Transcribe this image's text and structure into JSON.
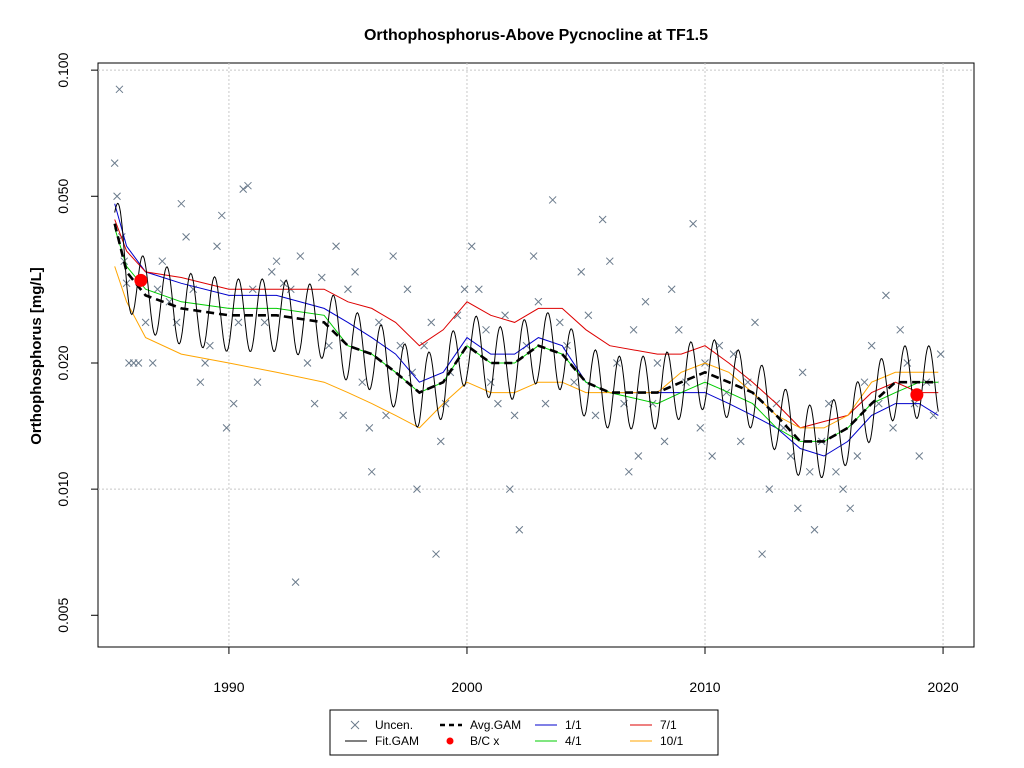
{
  "chart_data": {
    "type": "scatter",
    "title": "Orthophosphorus-Above Pycnocline at TF1.5",
    "xlabel": "",
    "ylabel": "Orthophosphorus [mg/L]",
    "y_scale": "log",
    "xlim": [
      1984.5,
      2021.3
    ],
    "ylim": [
      0.0042,
      0.104
    ],
    "x_ticks": [
      "1990",
      "2000",
      "2010",
      "2020"
    ],
    "y_ticks": [
      "0.005",
      "0.010",
      "0.020",
      "0.050",
      "0.100"
    ],
    "grid": true,
    "legend": {
      "placement": "bottom-center",
      "entries": [
        {
          "label": "Uncen.",
          "symbol": "x",
          "color": "#6b7b8c"
        },
        {
          "label": "Fit.GAM",
          "symbol": "line",
          "color": "#000000"
        },
        {
          "label": "Avg.GAM",
          "symbol": "dashed",
          "color": "#000000"
        },
        {
          "label": "B/C x",
          "symbol": "dot",
          "color": "#ff0000"
        },
        {
          "label": "1/1",
          "symbol": "line",
          "color": "#0000cc"
        },
        {
          "label": "4/1",
          "symbol": "line",
          "color": "#00cc00"
        },
        {
          "label": "7/1",
          "symbol": "line",
          "color": "#dd0000"
        },
        {
          "label": "10/1",
          "symbol": "line",
          "color": "#ffa500"
        }
      ]
    },
    "uncensored_points": [
      [
        1985.2,
        0.06
      ],
      [
        1985.4,
        0.09
      ],
      [
        1985.3,
        0.05
      ],
      [
        1985.5,
        0.04
      ],
      [
        1985.6,
        0.035
      ],
      [
        1985.7,
        0.031
      ],
      [
        1985.8,
        0.02
      ],
      [
        1986.0,
        0.02
      ],
      [
        1986.2,
        0.02
      ],
      [
        1986.5,
        0.025
      ],
      [
        1986.8,
        0.02
      ],
      [
        1987.0,
        0.03
      ],
      [
        1987.2,
        0.035
      ],
      [
        1987.5,
        0.028
      ],
      [
        1987.8,
        0.025
      ],
      [
        1988.0,
        0.048
      ],
      [
        1988.2,
        0.04
      ],
      [
        1988.5,
        0.03
      ],
      [
        1988.8,
        0.018
      ],
      [
        1989.0,
        0.02
      ],
      [
        1989.2,
        0.022
      ],
      [
        1989.5,
        0.038
      ],
      [
        1989.7,
        0.045
      ],
      [
        1989.9,
        0.014
      ],
      [
        1990.2,
        0.016
      ],
      [
        1990.4,
        0.025
      ],
      [
        1990.6,
        0.052
      ],
      [
        1990.8,
        0.053
      ],
      [
        1991.0,
        0.03
      ],
      [
        1991.2,
        0.018
      ],
      [
        1991.5,
        0.025
      ],
      [
        1991.8,
        0.033
      ],
      [
        1992.0,
        0.035
      ],
      [
        1992.3,
        0.031
      ],
      [
        1992.6,
        0.03
      ],
      [
        1992.8,
        0.006
      ],
      [
        1993.0,
        0.036
      ],
      [
        1993.3,
        0.02
      ],
      [
        1993.6,
        0.016
      ],
      [
        1993.9,
        0.032
      ],
      [
        1994.2,
        0.022
      ],
      [
        1994.5,
        0.038
      ],
      [
        1994.8,
        0.015
      ],
      [
        1995.0,
        0.03
      ],
      [
        1995.3,
        0.033
      ],
      [
        1995.6,
        0.018
      ],
      [
        1995.9,
        0.014
      ],
      [
        1996.0,
        0.011
      ],
      [
        1996.3,
        0.025
      ],
      [
        1996.6,
        0.015
      ],
      [
        1996.9,
        0.036
      ],
      [
        1997.2,
        0.022
      ],
      [
        1997.5,
        0.03
      ],
      [
        1997.7,
        0.019
      ],
      [
        1997.9,
        0.01
      ],
      [
        1998.2,
        0.022
      ],
      [
        1998.5,
        0.025
      ],
      [
        1998.7,
        0.007
      ],
      [
        1998.9,
        0.013
      ],
      [
        1999.1,
        0.016
      ],
      [
        1999.3,
        0.019
      ],
      [
        1999.6,
        0.026
      ],
      [
        1999.9,
        0.03
      ],
      [
        2000.2,
        0.038
      ],
      [
        2000.5,
        0.03
      ],
      [
        2000.8,
        0.024
      ],
      [
        2001.0,
        0.018
      ],
      [
        2001.3,
        0.016
      ],
      [
        2001.6,
        0.026
      ],
      [
        2001.8,
        0.01
      ],
      [
        2002.0,
        0.015
      ],
      [
        2002.2,
        0.008
      ],
      [
        2002.5,
        0.022
      ],
      [
        2002.8,
        0.036
      ],
      [
        2003.0,
        0.028
      ],
      [
        2003.3,
        0.016
      ],
      [
        2003.6,
        0.049
      ],
      [
        2003.9,
        0.025
      ],
      [
        2004.2,
        0.022
      ],
      [
        2004.5,
        0.018
      ],
      [
        2004.8,
        0.033
      ],
      [
        2005.1,
        0.026
      ],
      [
        2005.4,
        0.015
      ],
      [
        2005.7,
        0.044
      ],
      [
        2006.0,
        0.035
      ],
      [
        2006.3,
        0.02
      ],
      [
        2006.6,
        0.016
      ],
      [
        2006.8,
        0.011
      ],
      [
        2007.0,
        0.024
      ],
      [
        2007.2,
        0.012
      ],
      [
        2007.5,
        0.028
      ],
      [
        2007.8,
        0.016
      ],
      [
        2008.0,
        0.02
      ],
      [
        2008.3,
        0.013
      ],
      [
        2008.6,
        0.03
      ],
      [
        2008.9,
        0.024
      ],
      [
        2009.2,
        0.018
      ],
      [
        2009.5,
        0.043
      ],
      [
        2009.8,
        0.014
      ],
      [
        2010.0,
        0.02
      ],
      [
        2010.3,
        0.012
      ],
      [
        2010.6,
        0.022
      ],
      [
        2010.9,
        0.017
      ],
      [
        2011.2,
        0.021
      ],
      [
        2011.5,
        0.013
      ],
      [
        2011.8,
        0.018
      ],
      [
        2012.1,
        0.025
      ],
      [
        2012.4,
        0.007
      ],
      [
        2012.7,
        0.01
      ],
      [
        2013.0,
        0.016
      ],
      [
        2013.3,
        0.014
      ],
      [
        2013.6,
        0.012
      ],
      [
        2013.9,
        0.009
      ],
      [
        2014.1,
        0.019
      ],
      [
        2014.4,
        0.011
      ],
      [
        2014.6,
        0.008
      ],
      [
        2014.9,
        0.013
      ],
      [
        2015.2,
        0.016
      ],
      [
        2015.5,
        0.011
      ],
      [
        2015.8,
        0.01
      ],
      [
        2016.1,
        0.009
      ],
      [
        2016.4,
        0.012
      ],
      [
        2016.7,
        0.018
      ],
      [
        2017.0,
        0.022
      ],
      [
        2017.3,
        0.016
      ],
      [
        2017.6,
        0.029
      ],
      [
        2017.9,
        0.014
      ],
      [
        2018.2,
        0.024
      ],
      [
        2018.5,
        0.02
      ],
      [
        2018.8,
        0.016
      ],
      [
        2019.0,
        0.012
      ],
      [
        2019.3,
        0.018
      ],
      [
        2019.6,
        0.015
      ],
      [
        2019.9,
        0.021
      ]
    ],
    "bc_points": [
      [
        1986.3,
        0.0315
      ],
      [
        2018.9,
        0.0168
      ]
    ],
    "series": [
      {
        "name": "Avg.GAM",
        "color": "#000000",
        "points": [
          [
            1985.2,
            0.043
          ],
          [
            1985.7,
            0.033
          ],
          [
            1986.5,
            0.029
          ],
          [
            1988,
            0.027
          ],
          [
            1990,
            0.026
          ],
          [
            1992,
            0.026
          ],
          [
            1994,
            0.025
          ],
          [
            1995,
            0.022
          ],
          [
            1996,
            0.021
          ],
          [
            1997,
            0.019
          ],
          [
            1998,
            0.017
          ],
          [
            1999,
            0.018
          ],
          [
            2000,
            0.022
          ],
          [
            2001,
            0.02
          ],
          [
            2002,
            0.02
          ],
          [
            2003,
            0.022
          ],
          [
            2004,
            0.021
          ],
          [
            2005,
            0.018
          ],
          [
            2006,
            0.017
          ],
          [
            2008,
            0.017
          ],
          [
            2009,
            0.018
          ],
          [
            2010,
            0.019
          ],
          [
            2011,
            0.018
          ],
          [
            2012,
            0.017
          ],
          [
            2013,
            0.015
          ],
          [
            2014,
            0.013
          ],
          [
            2015,
            0.013
          ],
          [
            2016,
            0.014
          ],
          [
            2017,
            0.016
          ],
          [
            2018,
            0.018
          ],
          [
            2019,
            0.018
          ],
          [
            2019.8,
            0.018
          ]
        ]
      },
      {
        "name": "1/1",
        "color": "#0000cc",
        "points": [
          [
            1985.2,
            0.048
          ],
          [
            1985.7,
            0.038
          ],
          [
            1986.5,
            0.033
          ],
          [
            1988,
            0.031
          ],
          [
            1990,
            0.029
          ],
          [
            1992,
            0.029
          ],
          [
            1994,
            0.027
          ],
          [
            1995,
            0.025
          ],
          [
            1996,
            0.023
          ],
          [
            1997,
            0.021
          ],
          [
            1998,
            0.018
          ],
          [
            1999,
            0.019
          ],
          [
            2000,
            0.023
          ],
          [
            2001,
            0.021
          ],
          [
            2002,
            0.021
          ],
          [
            2003,
            0.023
          ],
          [
            2004,
            0.022
          ],
          [
            2005,
            0.018
          ],
          [
            2006,
            0.017
          ],
          [
            2008,
            0.017
          ],
          [
            2009,
            0.017
          ],
          [
            2010,
            0.017
          ],
          [
            2011,
            0.016
          ],
          [
            2012,
            0.015
          ],
          [
            2013,
            0.014
          ],
          [
            2014,
            0.0125
          ],
          [
            2015,
            0.012
          ],
          [
            2016,
            0.013
          ],
          [
            2017,
            0.015
          ],
          [
            2018,
            0.016
          ],
          [
            2019,
            0.016
          ],
          [
            2019.8,
            0.015
          ]
        ]
      },
      {
        "name": "4/1",
        "color": "#00cc00",
        "points": [
          [
            1985.2,
            0.042
          ],
          [
            1985.7,
            0.034
          ],
          [
            1986.5,
            0.03
          ],
          [
            1988,
            0.028
          ],
          [
            1990,
            0.027
          ],
          [
            1992,
            0.027
          ],
          [
            1994,
            0.026
          ],
          [
            1995,
            0.022
          ],
          [
            1996,
            0.021
          ],
          [
            1997,
            0.019
          ],
          [
            1998,
            0.017
          ],
          [
            1999,
            0.018
          ],
          [
            2000,
            0.022
          ],
          [
            2001,
            0.02
          ],
          [
            2002,
            0.02
          ],
          [
            2003,
            0.022
          ],
          [
            2004,
            0.021
          ],
          [
            2005,
            0.018
          ],
          [
            2006,
            0.017
          ],
          [
            2008,
            0.016
          ],
          [
            2009,
            0.017
          ],
          [
            2010,
            0.018
          ],
          [
            2011,
            0.017
          ],
          [
            2012,
            0.016
          ],
          [
            2013,
            0.014
          ],
          [
            2014,
            0.013
          ],
          [
            2015,
            0.013
          ],
          [
            2016,
            0.014
          ],
          [
            2017,
            0.016
          ],
          [
            2018,
            0.017
          ],
          [
            2019,
            0.018
          ],
          [
            2019.8,
            0.018
          ]
        ]
      },
      {
        "name": "7/1",
        "color": "#dd0000",
        "points": [
          [
            1985.2,
            0.044
          ],
          [
            1985.7,
            0.037
          ],
          [
            1986.5,
            0.033
          ],
          [
            1988,
            0.032
          ],
          [
            1990,
            0.03
          ],
          [
            1992,
            0.03
          ],
          [
            1994,
            0.03
          ],
          [
            1995,
            0.028
          ],
          [
            1996,
            0.027
          ],
          [
            1997,
            0.025
          ],
          [
            1998,
            0.022
          ],
          [
            1999,
            0.024
          ],
          [
            2000,
            0.028
          ],
          [
            2001,
            0.026
          ],
          [
            2002,
            0.025
          ],
          [
            2003,
            0.027
          ],
          [
            2004,
            0.027
          ],
          [
            2005,
            0.024
          ],
          [
            2006,
            0.022
          ],
          [
            2008,
            0.021
          ],
          [
            2009,
            0.021
          ],
          [
            2010,
            0.022
          ],
          [
            2011,
            0.02
          ],
          [
            2012,
            0.018
          ],
          [
            2013,
            0.016
          ],
          [
            2014,
            0.014
          ],
          [
            2015,
            0.0145
          ],
          [
            2016,
            0.015
          ],
          [
            2017,
            0.017
          ],
          [
            2018,
            0.018
          ],
          [
            2019,
            0.017
          ],
          [
            2019.8,
            0.017
          ]
        ]
      },
      {
        "name": "10/1",
        "color": "#ffa500",
        "points": [
          [
            1985.2,
            0.034
          ],
          [
            1985.7,
            0.028
          ],
          [
            1986.5,
            0.023
          ],
          [
            1988,
            0.021
          ],
          [
            1990,
            0.02
          ],
          [
            1992,
            0.019
          ],
          [
            1994,
            0.018
          ],
          [
            1995,
            0.017
          ],
          [
            1996,
            0.016
          ],
          [
            1997,
            0.015
          ],
          [
            1998,
            0.014
          ],
          [
            1999,
            0.016
          ],
          [
            2000,
            0.018
          ],
          [
            2001,
            0.017
          ],
          [
            2002,
            0.017
          ],
          [
            2003,
            0.018
          ],
          [
            2004,
            0.018
          ],
          [
            2005,
            0.017
          ],
          [
            2006,
            0.017
          ],
          [
            2008,
            0.017
          ],
          [
            2009,
            0.019
          ],
          [
            2010,
            0.02
          ],
          [
            2011,
            0.019
          ],
          [
            2012,
            0.017
          ],
          [
            2013,
            0.015
          ],
          [
            2014,
            0.014
          ],
          [
            2015,
            0.014
          ],
          [
            2016,
            0.015
          ],
          [
            2017,
            0.018
          ],
          [
            2018,
            0.019
          ],
          [
            2019,
            0.019
          ],
          [
            2019.8,
            0.019
          ]
        ]
      }
    ]
  }
}
